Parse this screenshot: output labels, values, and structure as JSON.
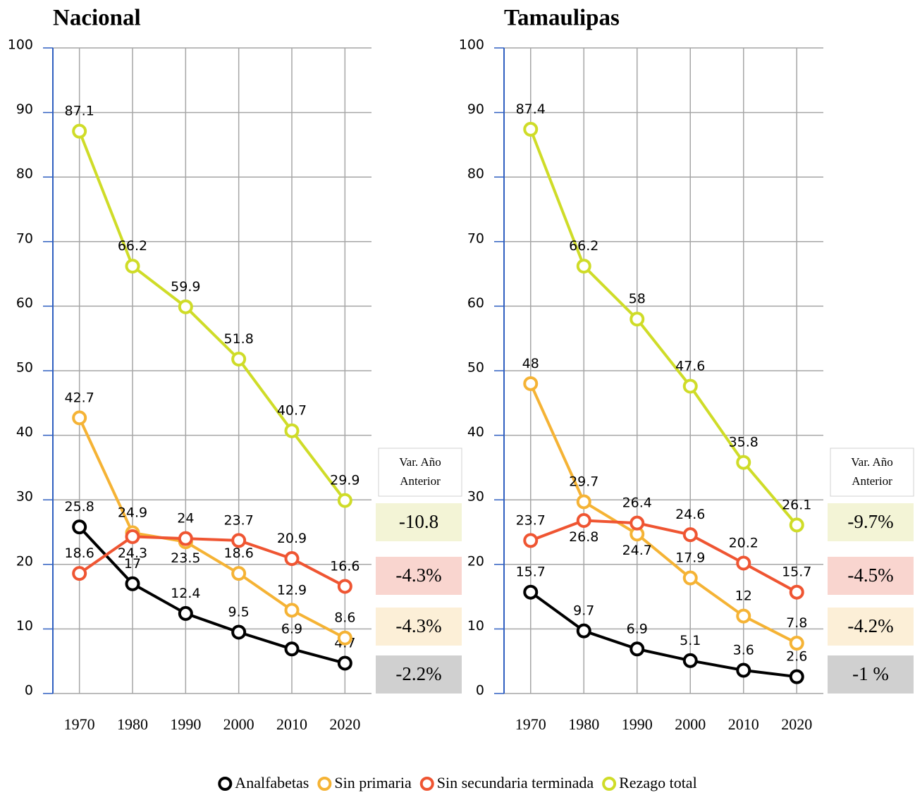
{
  "chart_data": [
    {
      "type": "line",
      "title": "Nacional",
      "categories": [
        "1970",
        "1980",
        "1990",
        "2000",
        "2010",
        "2020"
      ],
      "ylim": [
        0,
        100
      ],
      "yticks": [
        0,
        10,
        20,
        30,
        40,
        50,
        60,
        70,
        80,
        90,
        100
      ],
      "grid": true,
      "series": [
        {
          "name": "Analfabetas",
          "color": "#000000",
          "values": [
            25.8,
            17,
            12.4,
            9.5,
            6.9,
            4.7
          ]
        },
        {
          "name": "Sin primaria",
          "color": "#f5b335",
          "values": [
            42.7,
            24.9,
            23.5,
            18.6,
            12.9,
            8.6
          ]
        },
        {
          "name": "Sin secundaria terminada",
          "color": "#ef5532",
          "values": [
            18.6,
            24.3,
            24,
            23.7,
            20.9,
            16.6
          ]
        },
        {
          "name": "Rezago total",
          "color": "#cfdc28",
          "values": [
            87.1,
            66.2,
            59.9,
            51.8,
            40.7,
            29.9
          ]
        }
      ],
      "var_box": {
        "title": "Var. Año Anterior",
        "items": [
          {
            "label": "-10.8",
            "color": "#f3f4d6"
          },
          {
            "label": "-4.3%",
            "color": "#f9d5cf"
          },
          {
            "label": "-4.3%",
            "color": "#fcefd7"
          },
          {
            "label": "-2.2%",
            "color": "#d0d0d0"
          }
        ]
      }
    },
    {
      "type": "line",
      "title": "Tamaulipas",
      "categories": [
        "1970",
        "1980",
        "1990",
        "2000",
        "2010",
        "2020"
      ],
      "ylim": [
        0,
        100
      ],
      "yticks": [
        0,
        10,
        20,
        30,
        40,
        50,
        60,
        70,
        80,
        90,
        100
      ],
      "grid": true,
      "series": [
        {
          "color": "#000000",
          "values": [
            15.7,
            9.7,
            6.9,
            5.1,
            3.6,
            2.6
          ]
        },
        {
          "color": "#f5b335",
          "values": [
            48,
            29.7,
            24.7,
            17.9,
            12,
            7.8
          ]
        },
        {
          "color": "#ef5532",
          "values": [
            23.7,
            26.8,
            26.4,
            24.6,
            20.2,
            15.7
          ]
        },
        {
          "color": "#cfdc28",
          "values": [
            87.4,
            66.2,
            58,
            47.6,
            35.8,
            26.1
          ]
        }
      ],
      "var_box": {
        "title": "Var. Año Anterior",
        "items": [
          {
            "label": "-9.7%",
            "color": "#f3f4d6"
          },
          {
            "label": "-4.5%",
            "color": "#f9d5cf"
          },
          {
            "label": "-4.2%",
            "color": "#fcefd7"
          },
          {
            "label": "-1 %",
            "color": "#d0d0d0"
          }
        ]
      }
    }
  ]
}
